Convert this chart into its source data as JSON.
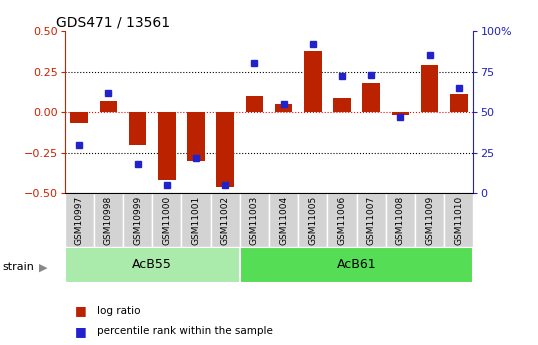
{
  "title": "GDS471 / 13561",
  "samples": [
    "GSM10997",
    "GSM10998",
    "GSM10999",
    "GSM11000",
    "GSM11001",
    "GSM11002",
    "GSM11003",
    "GSM11004",
    "GSM11005",
    "GSM11006",
    "GSM11007",
    "GSM11008",
    "GSM11009",
    "GSM11010"
  ],
  "log_ratio": [
    -0.07,
    0.07,
    -0.2,
    -0.42,
    -0.3,
    -0.46,
    0.1,
    0.05,
    0.38,
    0.09,
    0.18,
    -0.02,
    0.29,
    0.11
  ],
  "percentile_rank": [
    30,
    62,
    18,
    5,
    22,
    5,
    80,
    55,
    92,
    72,
    73,
    47,
    85,
    65
  ],
  "group_defs": [
    {
      "name": "AcB55",
      "start": 0,
      "end": 5,
      "color": "#AAEAAA"
    },
    {
      "name": "AcB61",
      "start": 6,
      "end": 13,
      "color": "#55DD55"
    }
  ],
  "bar_color": "#BB2200",
  "dot_color": "#2222CC",
  "ylim_left": [
    -0.5,
    0.5
  ],
  "ylim_right": [
    0,
    100
  ],
  "yticks_left": [
    -0.5,
    -0.25,
    0,
    0.25,
    0.5
  ],
  "yticks_right": [
    0,
    25,
    50,
    75,
    100
  ],
  "left_axis_color": "#CC2200",
  "right_axis_color": "#2222BB",
  "group_label": "strain",
  "legend_items": [
    {
      "label": "log ratio",
      "color": "#BB2200"
    },
    {
      "label": "percentile rank within the sample",
      "color": "#2222CC"
    }
  ],
  "background_color": "#FFFFFF",
  "cell_color": "#D3D3D3",
  "cell_border_color": "#FFFFFF"
}
